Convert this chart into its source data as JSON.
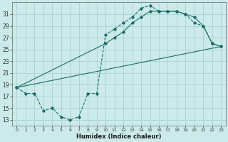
{
  "xlabel": "Humidex (Indice chaleur)",
  "bg_color": "#cceaea",
  "grid_color": "#b0d4d4",
  "line_color": "#1a6b6b",
  "xlim": [
    -0.5,
    23.5
  ],
  "ylim": [
    12,
    33
  ],
  "xticks": [
    0,
    1,
    2,
    3,
    4,
    5,
    6,
    7,
    8,
    9,
    10,
    11,
    12,
    13,
    14,
    15,
    16,
    17,
    18,
    19,
    20,
    21,
    22,
    23
  ],
  "yticks": [
    13,
    15,
    17,
    19,
    21,
    23,
    25,
    27,
    29,
    31
  ],
  "line1_x": [
    0,
    1,
    2,
    3,
    4,
    5,
    6,
    7,
    8,
    9,
    10,
    11,
    12,
    13,
    14,
    15,
    16,
    17,
    18,
    19,
    20,
    21,
    22,
    23
  ],
  "line1_y": [
    18.5,
    17.5,
    17.5,
    14.5,
    15,
    13.5,
    13,
    13.5,
    17.5,
    17.5,
    27.5,
    28.5,
    29.5,
    30.5,
    32,
    32.5,
    31.5,
    31.5,
    31.5,
    31,
    29.5,
    29,
    26,
    25.5
  ],
  "line2_x": [
    0,
    10,
    11,
    12,
    13,
    14,
    15,
    16,
    17,
    18,
    19,
    20,
    21,
    22,
    23
  ],
  "line2_y": [
    18.5,
    26,
    27,
    28,
    29.5,
    30.5,
    31.5,
    31.5,
    31.5,
    31.5,
    31,
    30.5,
    29,
    26,
    25.5
  ],
  "line3_x": [
    0,
    23
  ],
  "line3_y": [
    18.5,
    25.5
  ]
}
